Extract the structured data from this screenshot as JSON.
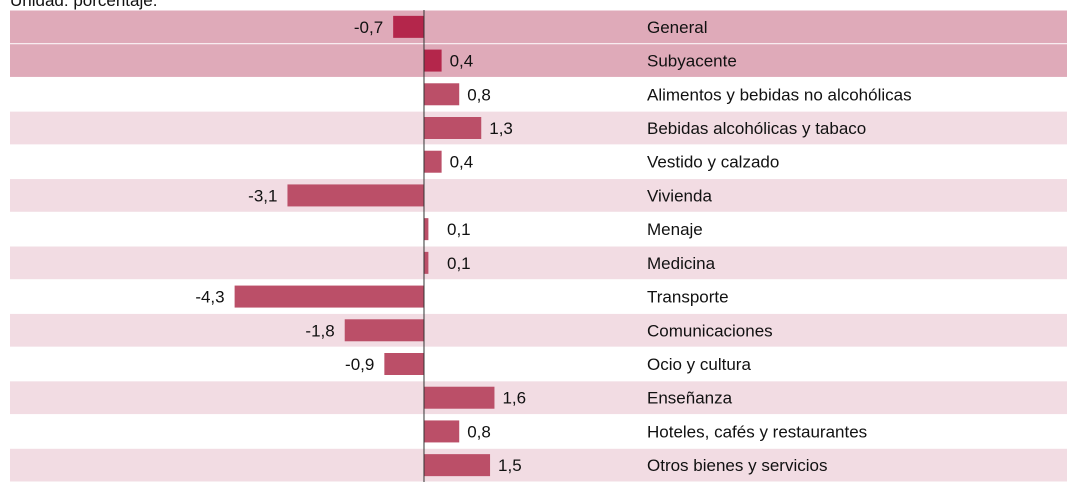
{
  "chart_data": {
    "type": "barh",
    "subtitle": "Unidad: porcentaje.",
    "categories": [
      "General",
      "Subyacente",
      "Alimentos y bebidas no alcohólicas",
      "Bebidas alcohólicas y tabaco",
      "Vestido y calzado",
      "Vivienda",
      "Menaje",
      "Medicina",
      "Transporte",
      "Comunicaciones",
      "Ocio y cultura",
      "Enseñanza",
      "Hoteles, cafés y restaurantes",
      "Otros bienes y servicios"
    ],
    "values": [
      -0.7,
      0.4,
      0.8,
      1.3,
      0.4,
      -3.1,
      0.1,
      0.1,
      -4.3,
      -1.8,
      -0.9,
      1.6,
      0.8,
      1.5
    ],
    "value_labels": [
      "-0,7",
      "0,4",
      "0,8",
      "1,3",
      "0,4",
      "-3,1",
      "0,1",
      "0,1",
      "-4,3",
      "-1,8",
      "-0,9",
      "1,6",
      "0,8",
      "1,5"
    ],
    "colors": [
      "#b4264b",
      "#b4264b",
      "#bb4f68",
      "#bb4f68",
      "#bb4f68",
      "#bb4f68",
      "#bb4f68",
      "#bb4f68",
      "#bb4f68",
      "#bb4f68",
      "#bb4f68",
      "#bb4f68",
      "#bb4f68",
      "#bb4f68"
    ],
    "row_colors": [
      "#dfaab9",
      "#dfaab9",
      "#ffffff",
      "#f2dce3",
      "#ffffff",
      "#f2dce3",
      "#ffffff",
      "#f2dce3",
      "#ffffff",
      "#f2dce3",
      "#ffffff",
      "#f2dce3",
      "#ffffff",
      "#f2dce3"
    ],
    "xlim": [
      -9.4,
      14.6
    ]
  }
}
